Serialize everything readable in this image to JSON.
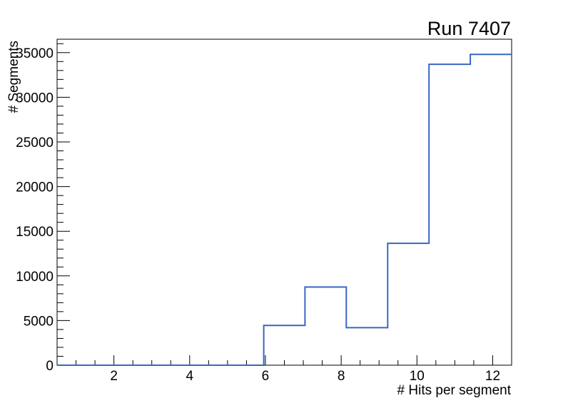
{
  "chart_data": {
    "type": "line",
    "style": "step-histogram",
    "title": "Run 7407",
    "xlabel": "# Hits per segment",
    "ylabel": "# Segments",
    "xlim": [
      0.5,
      12.5
    ],
    "ylim": [
      0,
      36500
    ],
    "bin_edges": [
      0.5,
      1.591,
      2.682,
      3.773,
      4.864,
      5.955,
      7.045,
      8.136,
      9.227,
      10.318,
      11.409,
      12.5
    ],
    "values": [
      0,
      0,
      0,
      0,
      0,
      4450,
      8750,
      4200,
      13650,
      33700,
      34800
    ],
    "x_major_ticks": [
      2,
      4,
      6,
      8,
      10,
      12
    ],
    "x_minor_step": 0.5,
    "y_major_ticks": [
      0,
      5000,
      10000,
      15000,
      20000,
      25000,
      30000,
      35000
    ],
    "y_minor_step": 1000,
    "grid": false,
    "legend": null,
    "line_color": "#3a66c2",
    "axis_color": "#000000",
    "text_color": "#000000",
    "background_color": "#ffffff"
  }
}
